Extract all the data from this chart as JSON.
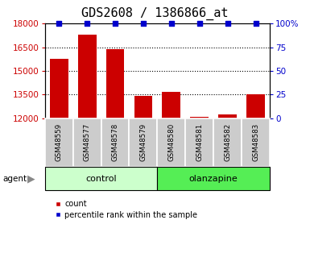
{
  "title": "GDS2608 / 1386866_at",
  "samples": [
    "GSM48559",
    "GSM48577",
    "GSM48578",
    "GSM48579",
    "GSM48580",
    "GSM48581",
    "GSM48582",
    "GSM48583"
  ],
  "counts": [
    15750,
    17300,
    16400,
    13400,
    13650,
    12100,
    12250,
    13500
  ],
  "percentile_ranks": [
    100,
    100,
    100,
    100,
    100,
    100,
    100,
    100
  ],
  "group_colors": {
    "control": "#ccffcc",
    "olanzapine": "#55ee55"
  },
  "bar_color": "#cc0000",
  "dot_color": "#0000cc",
  "ylim_left": [
    12000,
    18000
  ],
  "ylim_right": [
    0,
    100
  ],
  "yticks_left": [
    12000,
    13500,
    15000,
    16500,
    18000
  ],
  "yticks_right": [
    0,
    25,
    50,
    75,
    100
  ],
  "yticklabels_right": [
    "0",
    "25",
    "50",
    "75",
    "100%"
  ],
  "tick_label_bg": "#cccccc",
  "title_fontsize": 11,
  "tick_fontsize": 7.5,
  "bar_width": 0.65,
  "legend_count_label": "count",
  "legend_pct_label": "percentile rank within the sample"
}
